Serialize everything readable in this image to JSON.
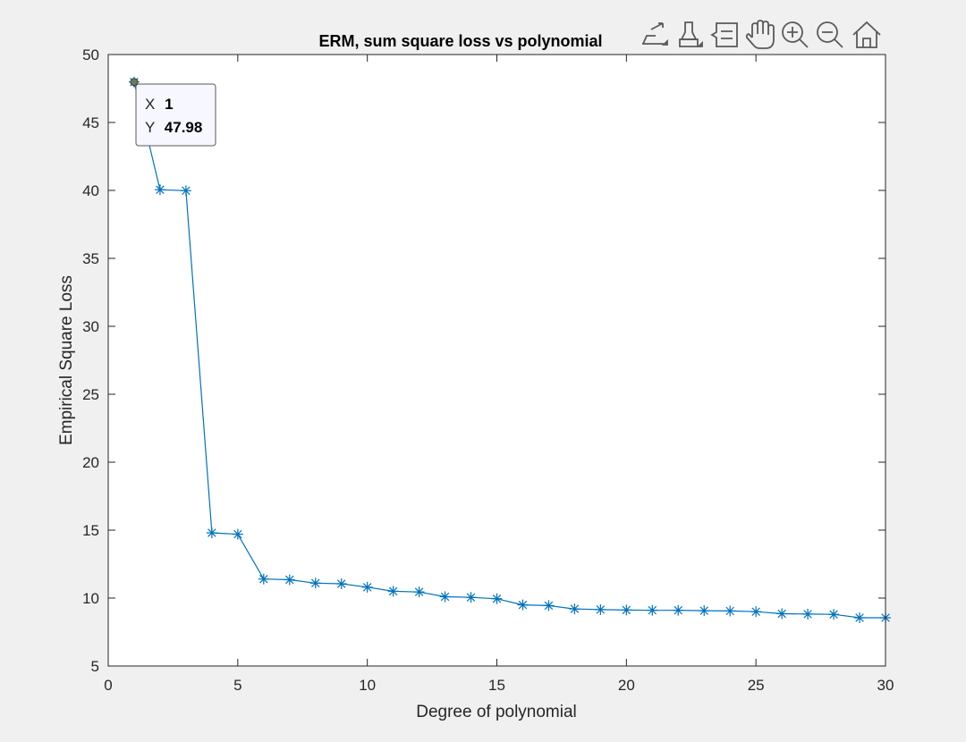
{
  "toolbar": {
    "buttons": [
      {
        "name": "export-icon"
      },
      {
        "name": "brush-icon"
      },
      {
        "name": "datatip-icon"
      },
      {
        "name": "pan-hand-icon"
      },
      {
        "name": "zoom-in-icon"
      },
      {
        "name": "zoom-out-icon"
      },
      {
        "name": "home-icon"
      }
    ]
  },
  "chart_data": {
    "type": "line",
    "title": "ERM, sum square loss vs polynomial",
    "xlabel": "Degree of polynomial",
    "ylabel": "Empirical Square Loss",
    "xlim": [
      0,
      30
    ],
    "ylim": [
      5,
      50
    ],
    "xticks": [
      0,
      5,
      10,
      15,
      20,
      25,
      30
    ],
    "yticks": [
      5,
      10,
      15,
      20,
      25,
      30,
      35,
      40,
      45,
      50
    ],
    "grid": false,
    "marker": "asterisk",
    "line_color": "#0072bd",
    "series": [
      {
        "x": [
          1,
          2,
          3,
          4,
          5,
          6,
          7,
          8,
          9,
          10,
          11,
          12,
          13,
          14,
          15,
          16,
          17,
          18,
          19,
          20,
          21,
          22,
          23,
          24,
          25,
          26,
          27,
          28,
          29,
          30
        ],
        "y": [
          47.98,
          40.05,
          39.98,
          14.8,
          14.7,
          11.4,
          11.35,
          11.1,
          11.05,
          10.8,
          10.5,
          10.45,
          10.1,
          10.05,
          9.95,
          9.5,
          9.45,
          9.2,
          9.15,
          9.12,
          9.1,
          9.1,
          9.07,
          9.05,
          9.0,
          8.85,
          8.82,
          8.8,
          8.55,
          8.55
        ]
      }
    ],
    "datatip": {
      "x_label": "X",
      "x_value": "1",
      "y_label": "Y",
      "y_value": "47.98",
      "point_index": 0
    }
  }
}
